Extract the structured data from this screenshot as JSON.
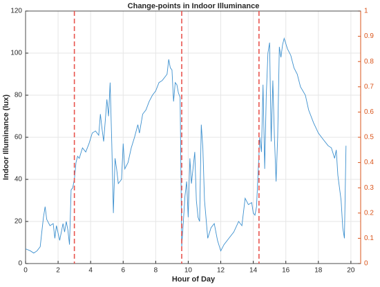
{
  "chart_data": {
    "type": "line",
    "title": "Change-points in Indoor Illuminance",
    "xlabel": "Hour of Day",
    "ylabel": "Indoor Illuminance (lux)",
    "xlim": [
      0,
      20.6
    ],
    "xticks": [
      0,
      2,
      4,
      6,
      8,
      10,
      12,
      14,
      16,
      18,
      20
    ],
    "ylim": [
      0,
      120
    ],
    "yticks": [
      0,
      20,
      40,
      60,
      80,
      100,
      120
    ],
    "y2lim": [
      0,
      1
    ],
    "y2ticks": [
      0,
      0.1,
      0.2,
      0.3,
      0.4,
      0.5,
      0.6,
      0.7,
      0.8,
      0.9,
      1
    ],
    "y2color": "#d95319",
    "grid": true,
    "changepoints": [
      3.0,
      9.6,
      14.35
    ],
    "changepoint_color": "#e8544e",
    "series": [
      {
        "color": "#3b8fce",
        "x": [
          0,
          0.3,
          0.5,
          0.7,
          0.9,
          1.0,
          1.1,
          1.2,
          1.3,
          1.5,
          1.7,
          1.8,
          1.9,
          2.1,
          2.3,
          2.4,
          2.5,
          2.6,
          2.7,
          2.8,
          2.9,
          3.0,
          3.1,
          3.2,
          3.3,
          3.5,
          3.7,
          3.9,
          4.1,
          4.3,
          4.5,
          4.6,
          4.7,
          4.8,
          4.9,
          5.0,
          5.1,
          5.2,
          5.3,
          5.4,
          5.5,
          5.6,
          5.7,
          5.9,
          6.0,
          6.1,
          6.3,
          6.5,
          6.7,
          6.9,
          7.0,
          7.2,
          7.4,
          7.6,
          7.8,
          8.0,
          8.2,
          8.4,
          8.6,
          8.7,
          8.8,
          8.9,
          9.0,
          9.1,
          9.2,
          9.3,
          9.4,
          9.5,
          9.6,
          9.7,
          9.8,
          9.9,
          10.0,
          10.1,
          10.2,
          10.4,
          10.5,
          10.6,
          10.7,
          10.8,
          10.9,
          11.0,
          11.2,
          11.4,
          11.6,
          11.8,
          12.0,
          12.2,
          12.5,
          12.8,
          13.1,
          13.3,
          13.5,
          13.7,
          13.9,
          14.0,
          14.1,
          14.2,
          14.3,
          14.4,
          14.5,
          14.6,
          14.7,
          14.8,
          14.9,
          15.0,
          15.1,
          15.2,
          15.3,
          15.4,
          15.5,
          15.6,
          15.7,
          15.8,
          15.9,
          16.1,
          16.3,
          16.5,
          16.7,
          16.9,
          17.2,
          17.4,
          17.7,
          18.0,
          18.3,
          18.6,
          18.8,
          19.0,
          19.1,
          19.2,
          19.4,
          19.5,
          19.6,
          19.7
        ],
        "values": [
          7,
          6,
          5,
          6,
          8,
          15,
          22,
          27,
          21,
          18,
          19,
          12,
          18,
          11,
          19,
          15,
          20,
          16,
          9,
          35,
          36,
          40,
          48,
          51,
          50,
          55,
          53,
          57,
          62,
          63,
          61,
          71,
          64,
          58,
          68,
          78,
          70,
          86,
          57,
          24,
          50,
          45,
          38,
          40,
          57,
          45,
          48,
          55,
          60,
          66,
          62,
          71,
          73,
          77,
          80,
          82,
          86,
          87,
          89,
          90,
          97,
          93,
          92,
          77,
          86,
          85,
          81,
          79,
          8,
          20,
          32,
          39,
          22,
          50,
          38,
          53,
          30,
          22,
          20,
          66,
          55,
          30,
          12,
          17,
          19,
          11,
          6,
          9,
          12,
          15,
          20,
          18,
          31,
          28,
          29,
          24,
          23,
          27,
          44,
          60,
          53,
          85,
          45,
          80,
          100,
          105,
          58,
          87,
          60,
          39,
          60,
          103,
          98,
          104,
          107,
          102,
          99,
          93,
          90,
          84,
          80,
          73,
          67,
          62,
          59,
          56,
          55,
          50,
          54,
          42,
          30,
          17,
          12,
          56
        ]
      }
    ]
  }
}
